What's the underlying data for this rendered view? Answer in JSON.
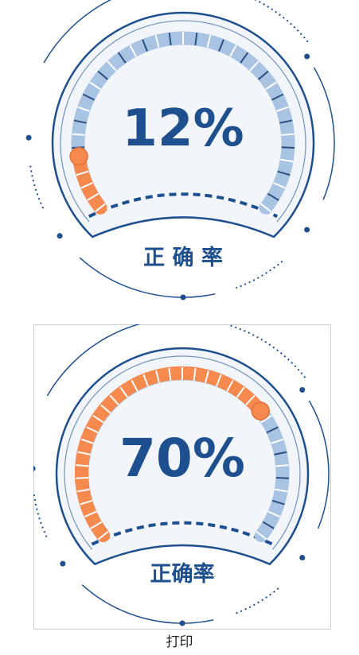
{
  "gauges": [
    {
      "value_label": "12%",
      "fraction": 0.12,
      "label": "正 确 率"
    },
    {
      "value_label": "70%",
      "fraction": 0.7,
      "label": "正确率"
    }
  ],
  "caption": "打印",
  "colors": {
    "dark_blue": "#1e4f8f",
    "light_blue": "#a9c3e3",
    "orange": "#f5894e",
    "face": "#f2f6fb"
  }
}
